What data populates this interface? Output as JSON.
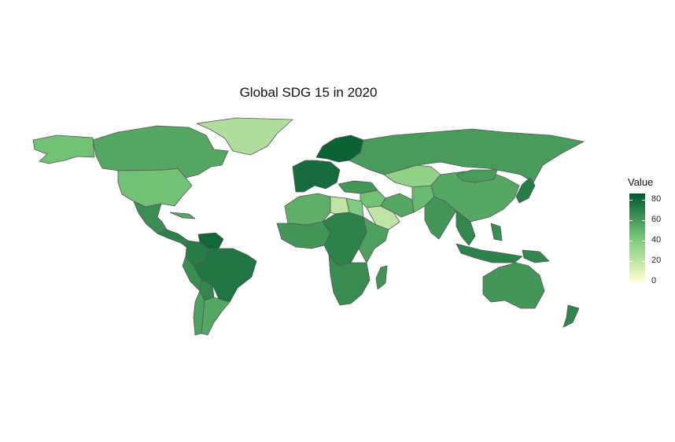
{
  "title": "Global SDG 15 in 2020",
  "legend": {
    "title": "Value",
    "ticks": [
      "80",
      "60",
      "40",
      "20",
      "0"
    ],
    "tick_values": [
      80,
      60,
      40,
      20,
      0
    ],
    "min": 0,
    "max": 86,
    "low_color": "#ffffcc",
    "mid_color": "#78c679",
    "high_color": "#00582e"
  },
  "map_data": {
    "type": "choropleth",
    "metric": "SDG 15",
    "year": 2020,
    "regions": [
      {
        "name": "Greenland",
        "value": 25
      },
      {
        "name": "Canada",
        "value": 55
      },
      {
        "name": "Alaska",
        "value": 45
      },
      {
        "name": "United States",
        "value": 45
      },
      {
        "name": "Mexico",
        "value": 65
      },
      {
        "name": "Central America",
        "value": 70
      },
      {
        "name": "Cuba",
        "value": 55
      },
      {
        "name": "Venezuela",
        "value": 80
      },
      {
        "name": "Colombia",
        "value": 72
      },
      {
        "name": "Brazil",
        "value": 75
      },
      {
        "name": "Peru",
        "value": 65
      },
      {
        "name": "Bolivia",
        "value": 68
      },
      {
        "name": "Argentina",
        "value": 55
      },
      {
        "name": "Chile",
        "value": 58
      },
      {
        "name": "Western Europe",
        "value": 78
      },
      {
        "name": "Scandinavia",
        "value": 82
      },
      {
        "name": "Russia",
        "value": 60
      },
      {
        "name": "Kazakhstan",
        "value": 35
      },
      {
        "name": "Turkey",
        "value": 62
      },
      {
        "name": "Middle East",
        "value": 45
      },
      {
        "name": "Saudi Arabia",
        "value": 20
      },
      {
        "name": "Iran",
        "value": 55
      },
      {
        "name": "Afghanistan",
        "value": 48
      },
      {
        "name": "India",
        "value": 62
      },
      {
        "name": "China",
        "value": 55
      },
      {
        "name": "Mongolia",
        "value": 60
      },
      {
        "name": "Southeast Asia",
        "value": 68
      },
      {
        "name": "Japan",
        "value": 72
      },
      {
        "name": "Indonesia",
        "value": 70
      },
      {
        "name": "Philippines",
        "value": 65
      },
      {
        "name": "Papua New Guinea",
        "value": 68
      },
      {
        "name": "Australia",
        "value": 62
      },
      {
        "name": "New Zealand",
        "value": 68
      },
      {
        "name": "North Africa",
        "value": 52
      },
      {
        "name": "Libya",
        "value": 20
      },
      {
        "name": "Egypt",
        "value": 40
      },
      {
        "name": "West Africa",
        "value": 62
      },
      {
        "name": "Central Africa",
        "value": 70
      },
      {
        "name": "East Africa",
        "value": 58
      },
      {
        "name": "Southern Africa",
        "value": 66
      },
      {
        "name": "Madagascar",
        "value": 62
      }
    ]
  }
}
